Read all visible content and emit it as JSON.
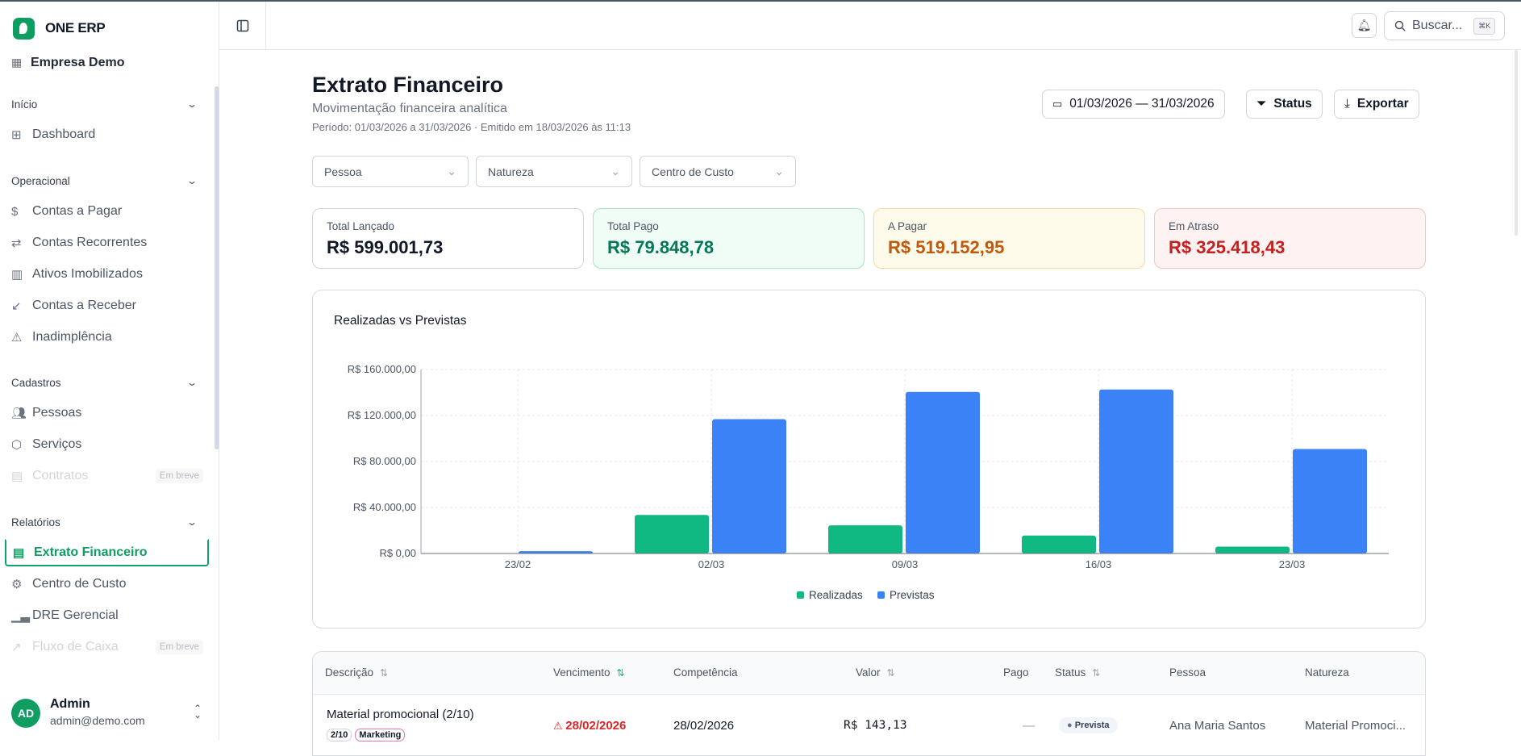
{
  "app": {
    "brand": "ONE ERP",
    "company": "Empresa Demo"
  },
  "sidebar": {
    "sections": [
      {
        "label": "Início",
        "items": [
          {
            "label": "Dashboard",
            "icon": "dashboard-icon"
          }
        ]
      },
      {
        "label": "Operacional",
        "items": [
          {
            "label": "Contas a Pagar",
            "icon": "dollar-icon"
          },
          {
            "label": "Contas Recorrentes",
            "icon": "repeat-icon"
          },
          {
            "label": "Ativos Imobilizados",
            "icon": "building-icon"
          },
          {
            "label": "Contas a Receber",
            "icon": "arrow-down-left-icon"
          },
          {
            "label": "Inadimplência",
            "icon": "warning-icon"
          }
        ]
      },
      {
        "label": "Cadastros",
        "items": [
          {
            "label": "Pessoas",
            "icon": "users-icon"
          },
          {
            "label": "Serviços",
            "icon": "package-icon"
          },
          {
            "label": "Contratos",
            "icon": "file-icon",
            "badge": "Em breve",
            "disabled": true
          }
        ]
      },
      {
        "label": "Relatórios",
        "items": [
          {
            "label": "Extrato Financeiro",
            "icon": "receipt-icon",
            "active": true
          },
          {
            "label": "Centro de Custo",
            "icon": "gear-icon"
          },
          {
            "label": "DRE Gerencial",
            "icon": "bar-chart-icon"
          },
          {
            "label": "Fluxo de Caixa",
            "icon": "trending-icon",
            "badge": "Em breve",
            "disabled": true
          }
        ]
      }
    ],
    "user": {
      "initials": "AD",
      "name": "Admin",
      "email": "admin@demo.com"
    }
  },
  "topbar": {
    "search_placeholder": "Buscar...",
    "shortcut": "⌘K"
  },
  "page": {
    "title": "Extrato Financeiro",
    "subtitle": "Movimentação financeira analítica",
    "period": "Período: 01/03/2026 a 31/03/2026 · Emitido em 18/03/2026 às 11:13",
    "date_range": "01/03/2026 — 31/03/2026",
    "status_label": "Status",
    "export_label": "Exportar",
    "filters": [
      "Pessoa",
      "Natureza",
      "Centro de Custo"
    ]
  },
  "summary": [
    {
      "label": "Total Lançado",
      "value": "R$ 599.001,73",
      "color": "#111827",
      "bg": "#ffffff",
      "border": "#d1d5db"
    },
    {
      "label": "Total Pago",
      "value": "R$ 79.848,78",
      "color": "#047857",
      "bg": "#f0fdf6",
      "border": "#a7e3c6"
    },
    {
      "label": "A Pagar",
      "value": "R$ 519.152,95",
      "color": "#c2580c",
      "bg": "#fffbeb",
      "border": "#fbd9a0"
    },
    {
      "label": "Em Atraso",
      "value": "R$ 325.418,43",
      "color": "#c81e1e",
      "bg": "#fef2f2",
      "border": "#f8c3c3"
    }
  ],
  "chart_data": {
    "type": "bar",
    "title": "Realizadas vs Previstas",
    "categories": [
      "23/02",
      "02/03",
      "09/03",
      "16/03",
      "23/03"
    ],
    "series": [
      {
        "name": "Realizadas",
        "color": "#10b981",
        "values": [
          0,
          33500,
          24500,
          15600,
          6000
        ]
      },
      {
        "name": "Previstas",
        "color": "#3b82f6",
        "values": [
          2000,
          116800,
          140500,
          142600,
          90900
        ]
      }
    ],
    "ylim": [
      0,
      160000
    ],
    "yticks": [
      "R$ 0,00",
      "R$ 40.000,00",
      "R$ 80.000,00",
      "R$ 120.000,00",
      "R$ 160.000,00"
    ],
    "grid": true,
    "legend": "bottom"
  },
  "table": {
    "columns": [
      "Descrição",
      "Vencimento",
      "Competência",
      "Valor",
      "Pago",
      "Status",
      "Pessoa",
      "Natureza"
    ],
    "rows": [
      {
        "descricao": "Material promocional (2/10)",
        "tags": [
          "2/10",
          "Marketing"
        ],
        "vencimento": "28/02/2026",
        "competencia": "28/02/2026",
        "valor": "R$ 143,13",
        "pago": "—",
        "status": "Prevista",
        "pessoa": "Ana Maria Santos",
        "natureza": "Material Promoci..."
      }
    ]
  }
}
